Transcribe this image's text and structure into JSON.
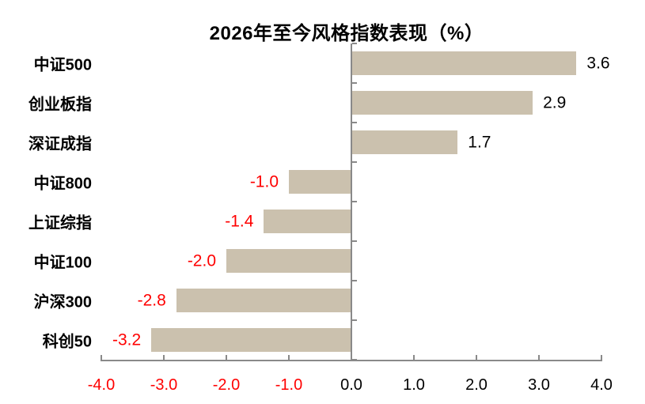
{
  "chart_data": {
    "type": "bar",
    "orientation": "horizontal",
    "title": "2026年至今风格指数表现（%）",
    "categories": [
      "中证500",
      "创业板指",
      "深证成指",
      "中证800",
      "上证综指",
      "中证100",
      "沪深300",
      "科创50"
    ],
    "values": [
      3.6,
      2.9,
      1.7,
      -1.0,
      -1.4,
      -2.0,
      -2.8,
      -3.2
    ],
    "value_labels": [
      "3.6",
      "2.9",
      "1.7",
      "-1.0",
      "-1.4",
      "-2.0",
      "-2.8",
      "-3.2"
    ],
    "xlim": [
      -4.0,
      4.0
    ],
    "x_ticks": [
      -4.0,
      -3.0,
      -2.0,
      -1.0,
      0.0,
      1.0,
      2.0,
      3.0,
      4.0
    ],
    "x_tick_labels": [
      "-4.0",
      "-3.0",
      "-2.0",
      "-1.0",
      "0.0",
      "1.0",
      "2.0",
      "3.0",
      "4.0"
    ],
    "grid": false,
    "legend_position": null,
    "colors": {
      "bar": "#CBC1AE",
      "axis": "#898989",
      "positive_text": "#000000",
      "negative_text": "#FF0000",
      "title_text": "#000000"
    }
  }
}
